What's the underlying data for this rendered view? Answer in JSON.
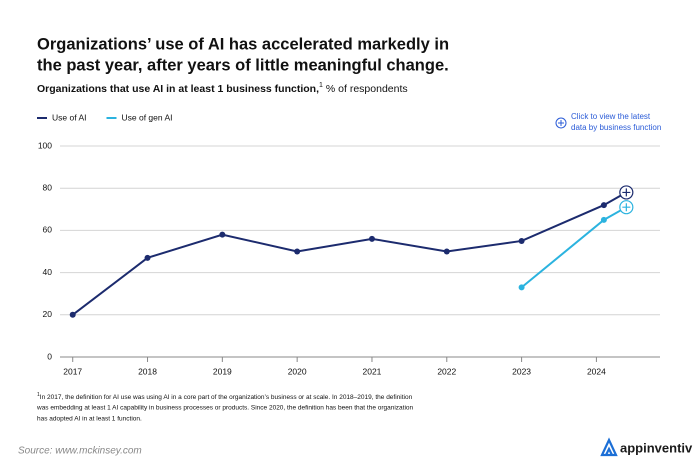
{
  "chart_data": {
    "type": "line",
    "title": [
      "Organizations’ use of AI has accelerated markedly in",
      "the past year, after years of little meaningful change."
    ],
    "subtitle": {
      "text": "Organizations that use AI in at least 1 business function,",
      "footnote_ref": "1",
      "unit": "% of respondents"
    },
    "annotation": [
      "Click to view the latest",
      "data by business function"
    ],
    "x": [
      2017,
      2018,
      2019,
      2020,
      2021,
      2022,
      2023,
      2024.1,
      2024.4
    ],
    "xlim": [
      2016.83,
      2024.85
    ],
    "xticks": [
      2017,
      2018,
      2019,
      2020,
      2021,
      2022,
      2023,
      2024
    ],
    "ylim": [
      0,
      100
    ],
    "yticks": [
      0,
      20,
      40,
      60,
      80,
      100
    ],
    "grid": true,
    "legend": "top-left",
    "series": [
      {
        "name": "Use of AI",
        "color": "#1c2b6e",
        "values": [
          20,
          47,
          58,
          50,
          56,
          50,
          55,
          72,
          78
        ]
      },
      {
        "name": "Use of gen AI",
        "color": "#2bb3df",
        "values": [
          null,
          null,
          null,
          null,
          null,
          null,
          33,
          65,
          71
        ]
      }
    ],
    "footnote": {
      "marker": "1",
      "lines": [
        "In 2017, the definition for AI use was using AI in a core part of the organization’s business or at scale. In 2018–2019, the definition",
        "was embedding at least 1 AI capability in business processes or products. Since 2020, the definition has been that the organization",
        "has adopted AI in at least 1 function."
      ]
    },
    "source": "Source: www.mckinsey.com",
    "brand": "appinventiv"
  }
}
